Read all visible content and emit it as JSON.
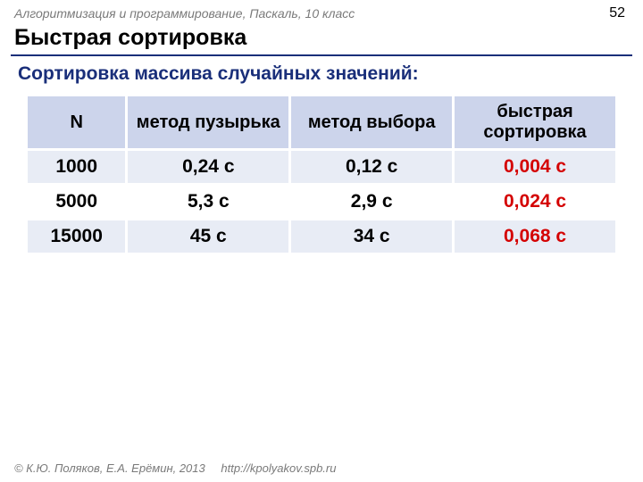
{
  "header": {
    "course": "Алгоритмизация и программирование, Паскаль, 10 класс",
    "page_number": "52"
  },
  "title": "Быстрая сортировка",
  "subtitle": "Сортировка массива случайных значений:",
  "table": {
    "columns": [
      "N",
      "метод пузырька",
      "метод выбора",
      "быстрая сортировка"
    ],
    "rows": [
      {
        "cells": [
          "1000",
          "0,24 с",
          "0,12 с",
          "0,004 с"
        ],
        "highlight_col": 3,
        "stripe": "odd"
      },
      {
        "cells": [
          "5000",
          "5,3 с",
          "2,9 с",
          "0,024 с"
        ],
        "highlight_col": 3,
        "stripe": "even"
      },
      {
        "cells": [
          "15000",
          "45 с",
          "34 с",
          "0,068 с"
        ],
        "highlight_col": 3,
        "stripe": "odd"
      }
    ],
    "header_bg": "#ccd4eb",
    "stripe_odd_bg": "#e8ecf5",
    "stripe_even_bg": "#ffffff",
    "highlight_color": "#d40000",
    "border_color": "#ffffff",
    "font_size": 21
  },
  "footer": {
    "copyright": "© К.Ю. Поляков, Е.А. Ерёмин, 2013",
    "link": "http://kpolyakov.spb.ru"
  },
  "colors": {
    "accent": "#1a2f7a",
    "muted_text": "#7a7a7a"
  }
}
